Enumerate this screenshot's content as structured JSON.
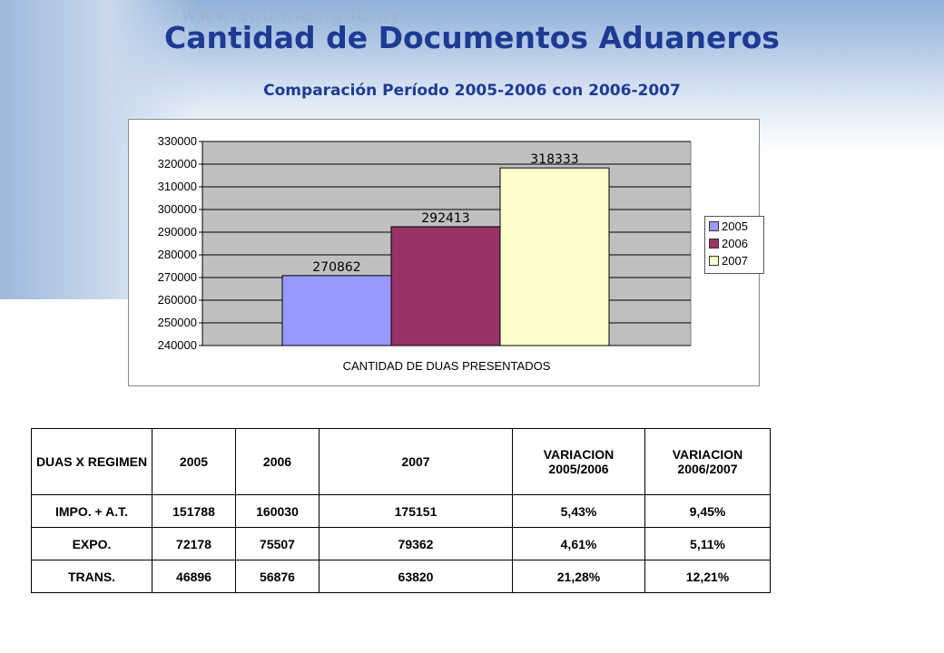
{
  "header": {
    "url_watermark": "www.aduanas.gub.uy",
    "title": "Cantidad de Documentos Aduaneros",
    "subtitle": "Comparación Período 2005-2006 con 2006-2007"
  },
  "chart_data": {
    "type": "bar",
    "categories": [
      "2005",
      "2006",
      "2007"
    ],
    "values": [
      270862,
      292413,
      318333
    ],
    "colors": [
      "#9999ff",
      "#993366",
      "#ffffcc"
    ],
    "xlabel": "CANTIDAD DE DUAS PRESENTADOS",
    "ylim": [
      240000,
      330000
    ],
    "yticks": [
      "240000",
      "250000",
      "260000",
      "270000",
      "280000",
      "290000",
      "300000",
      "310000",
      "320000",
      "330000"
    ],
    "plot_background": "#c0c0c0",
    "grid": true,
    "legend": [
      "2005",
      "2006",
      "2007"
    ],
    "legend_position": "right"
  },
  "table": {
    "headers": [
      "DUAS X REGIMEN",
      "2005",
      "2006",
      "2007",
      "VARIACION 2005/2006",
      "VARIACION 2006/2007"
    ],
    "rows": [
      [
        "IMPO. + A.T.",
        "151788",
        "160030",
        "175151",
        "5,43%",
        "9,45%"
      ],
      [
        "EXPO.",
        "72178",
        "75507",
        "79362",
        "4,61%",
        "5,11%"
      ],
      [
        "TRANS.",
        "46896",
        "56876",
        "63820",
        "21,28%",
        "12,21%"
      ]
    ]
  }
}
